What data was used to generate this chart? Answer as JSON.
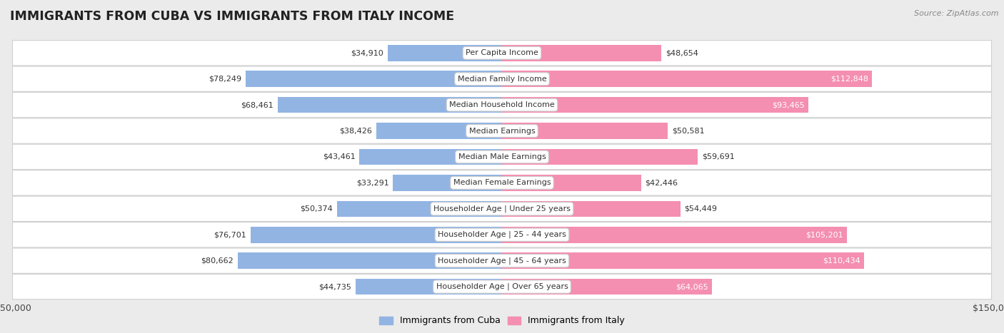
{
  "title": "IMMIGRANTS FROM CUBA VS IMMIGRANTS FROM ITALY INCOME",
  "source": "Source: ZipAtlas.com",
  "categories": [
    "Per Capita Income",
    "Median Family Income",
    "Median Household Income",
    "Median Earnings",
    "Median Male Earnings",
    "Median Female Earnings",
    "Householder Age | Under 25 years",
    "Householder Age | 25 - 44 years",
    "Householder Age | 45 - 64 years",
    "Householder Age | Over 65 years"
  ],
  "cuba_values": [
    34910,
    78249,
    68461,
    38426,
    43461,
    33291,
    50374,
    76701,
    80662,
    44735
  ],
  "italy_values": [
    48654,
    112848,
    93465,
    50581,
    59691,
    42446,
    54449,
    105201,
    110434,
    64065
  ],
  "cuba_labels": [
    "$34,910",
    "$78,249",
    "$68,461",
    "$38,426",
    "$43,461",
    "$33,291",
    "$50,374",
    "$76,701",
    "$80,662",
    "$44,735"
  ],
  "italy_labels": [
    "$48,654",
    "$112,848",
    "$93,465",
    "$50,581",
    "$59,691",
    "$42,446",
    "$54,449",
    "$105,201",
    "$110,434",
    "$64,065"
  ],
  "cuba_color": "#92b4e3",
  "italy_color": "#f48fb1",
  "italy_dark_color": "#e8638a",
  "bar_height": 0.62,
  "max_value": 150000,
  "background_color": "#ebebeb",
  "row_bg_color": "#ffffff",
  "row_edge_color": "#d0d0d0",
  "legend_cuba": "Immigrants from Cuba",
  "legend_italy": "Immigrants from Italy",
  "inside_label_threshold": 30000,
  "italy_inside_label_threshold": 60000
}
